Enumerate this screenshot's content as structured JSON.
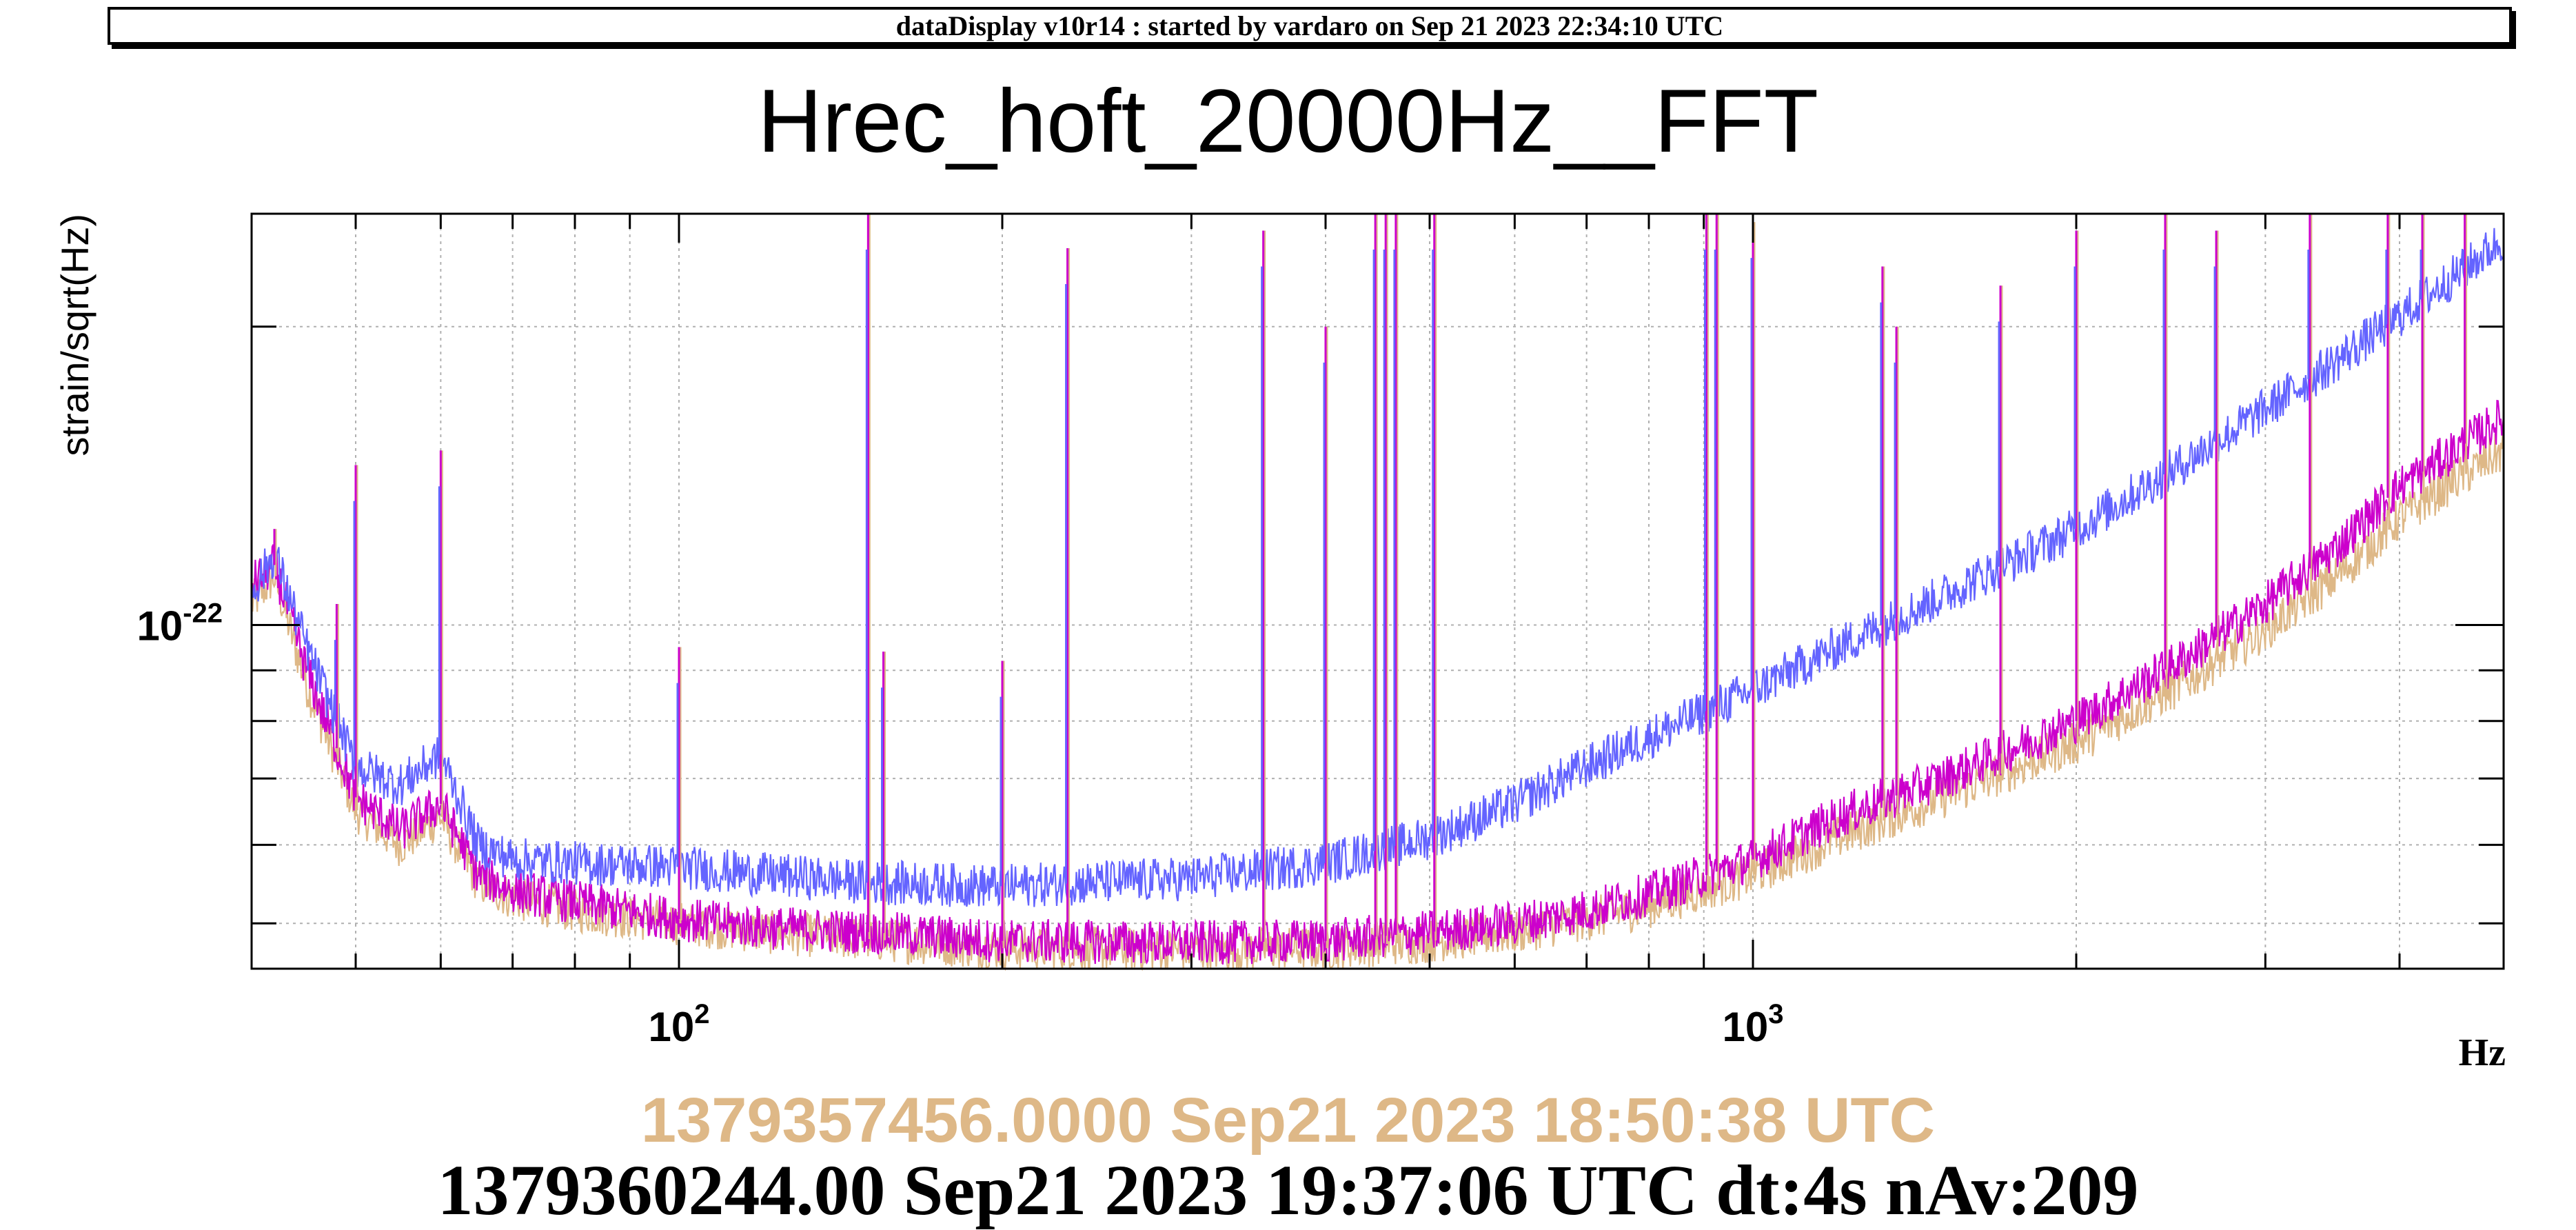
{
  "header": {
    "text": "dataDisplay v10r14 : started by vardaro on Sep 21 2023 22:34:10 UTC"
  },
  "chart_data": {
    "type": "line",
    "title": "Hrec_hoft_20000Hz__FFT",
    "xlabel": "Hz",
    "ylabel": "strain/sqrt(Hz)",
    "x_scale": "log",
    "y_scale": "log",
    "xlim": [
      40,
      5000
    ],
    "ylim": [
      4.5e-23,
      2.6e-22
    ],
    "x_major_ticks": [
      {
        "value": 100,
        "base": "10",
        "exp": "2"
      },
      {
        "value": 1000,
        "base": "10",
        "exp": "3"
      }
    ],
    "y_major_ticks": [
      {
        "value": 1e-22,
        "base": "10",
        "exp": "-22"
      }
    ],
    "grid": true,
    "series": [
      {
        "role": "current",
        "color": "#6464ff",
        "x": [
          40,
          42,
          45,
          50,
          55,
          60,
          65,
          70,
          80,
          100,
          120,
          150,
          200,
          300,
          400,
          500,
          600,
          700,
          800,
          1000,
          1200,
          1500,
          2000,
          2500,
          3000,
          3500,
          4000,
          4500,
          5000
        ],
        "values": [
          1.08e-22,
          1.18e-22,
          9.5e-23,
          7.2e-23,
          6.9e-23,
          7.4e-23,
          6e-23,
          5.8e-23,
          5.75e-23,
          5.7e-23,
          5.6e-23,
          5.5e-23,
          5.45e-23,
          5.55e-23,
          5.75e-23,
          6.1e-23,
          6.6e-23,
          7.2e-23,
          7.7e-23,
          8.6e-23,
          9.5e-23,
          1.07e-22,
          1.25e-22,
          1.45e-22,
          1.65e-22,
          1.85e-22,
          2.05e-22,
          2.25e-22,
          2.45e-22
        ]
      },
      {
        "role": "current-secondary",
        "color": "#cc00cc",
        "x": [
          40,
          42,
          45,
          50,
          55,
          60,
          65,
          70,
          80,
          100,
          120,
          150,
          200,
          300,
          400,
          500,
          600,
          700,
          800,
          1000,
          1200,
          1500,
          2000,
          2500,
          3000,
          3500,
          4000,
          4500,
          5000
        ],
        "values": [
          1.1e-22,
          1.15e-22,
          9e-23,
          6.7e-23,
          6.2e-23,
          6.6e-23,
          5.6e-23,
          5.4e-23,
          5.25e-23,
          5.05e-23,
          4.95e-23,
          4.9e-23,
          4.8e-23,
          4.78e-23,
          4.8e-23,
          4.9e-23,
          5e-23,
          5.15e-23,
          5.35e-23,
          5.8e-23,
          6.4e-23,
          7e-23,
          8e-23,
          9.2e-23,
          1.05e-22,
          1.2e-22,
          1.38e-22,
          1.5e-22,
          1.62e-22
        ]
      },
      {
        "role": "reference",
        "color": "#deb887",
        "x": [
          40,
          42,
          45,
          50,
          55,
          60,
          65,
          70,
          80,
          100,
          120,
          150,
          200,
          300,
          400,
          500,
          600,
          700,
          800,
          1000,
          1200,
          1500,
          2000,
          2500,
          3000,
          3500,
          4000,
          4500,
          5000
        ],
        "values": [
          1.05e-22,
          1.12e-22,
          8.7e-23,
          6.5e-23,
          6e-23,
          6.4e-23,
          5.5e-23,
          5.3e-23,
          5.15e-23,
          5e-23,
          4.9e-23,
          4.82e-23,
          4.72e-23,
          4.7e-23,
          4.72e-23,
          4.8e-23,
          4.9e-23,
          5.05e-23,
          5.2e-23,
          5.6e-23,
          6.1e-23,
          6.7e-23,
          7.6e-23,
          8.7e-23,
          9.9e-23,
          1.12e-22,
          1.28e-22,
          1.4e-22,
          1.5e-22
        ]
      }
    ],
    "lines": [
      {
        "x": 42,
        "peak": 1.25e-22
      },
      {
        "x": 48,
        "peak": 1.05e-22
      },
      {
        "x": 50,
        "peak": 1.45e-22
      },
      {
        "x": 60,
        "peak": 1.5e-22
      },
      {
        "x": 100,
        "peak": 9.5e-23
      },
      {
        "x": 150,
        "peak": 2.6e-22
      },
      {
        "x": 155,
        "peak": 9.4e-23
      },
      {
        "x": 200,
        "peak": 9.2e-23
      },
      {
        "x": 230,
        "peak": 2.4e-22
      },
      {
        "x": 350,
        "peak": 2.5e-22
      },
      {
        "x": 400,
        "peak": 2e-22
      },
      {
        "x": 445,
        "peak": 2.6e-22
      },
      {
        "x": 455,
        "peak": 2.6e-22
      },
      {
        "x": 465,
        "peak": 2.6e-22
      },
      {
        "x": 505,
        "peak": 2.6e-22
      },
      {
        "x": 905,
        "peak": 2.6e-22
      },
      {
        "x": 925,
        "peak": 2.6e-22
      },
      {
        "x": 1000,
        "peak": 2.55e-22
      },
      {
        "x": 1320,
        "peak": 2.3e-22
      },
      {
        "x": 1360,
        "peak": 2e-22
      },
      {
        "x": 1700,
        "peak": 2.2e-22
      },
      {
        "x": 2000,
        "peak": 2.5e-22
      },
      {
        "x": 2420,
        "peak": 2.6e-22
      },
      {
        "x": 2700,
        "peak": 2.5e-22
      },
      {
        "x": 3300,
        "peak": 2.6e-22
      },
      {
        "x": 3900,
        "peak": 2.6e-22
      },
      {
        "x": 4200,
        "peak": 2.6e-22
      },
      {
        "x": 4600,
        "peak": 2.6e-22
      }
    ]
  },
  "stamps": {
    "reference": "1379357456.0000 Sep21 2023 18:50:38 UTC",
    "current": "1379360244.00 Sep21 2023 19:37:06 UTC dt:4s nAv:209"
  },
  "colors": {
    "current": "#6464ff",
    "current_secondary": "#cc00cc",
    "reference": "#deb887"
  }
}
